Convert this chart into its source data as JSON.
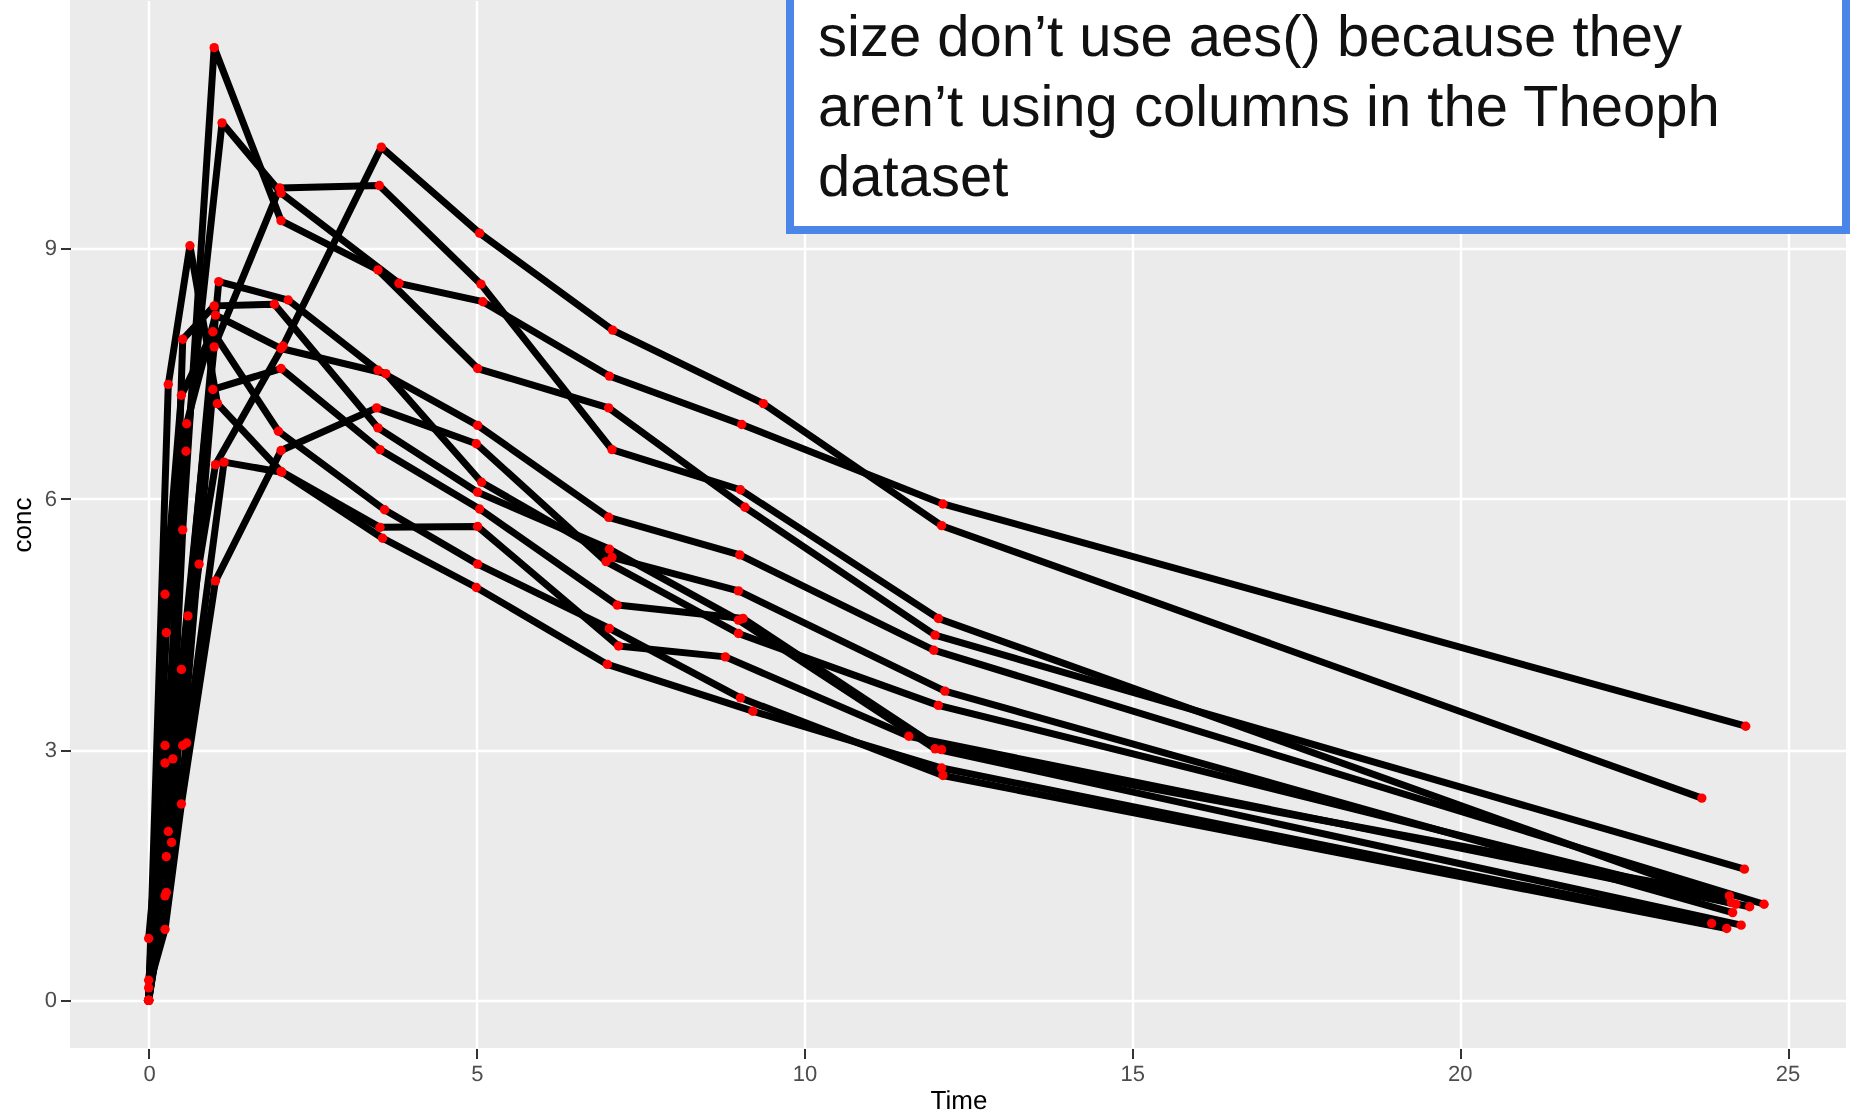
{
  "chart_data": {
    "type": "line",
    "xlabel": "Time",
    "ylabel": "conc",
    "annotations": [
      "size don’t use aes() because they aren’t using columns in the Theoph dataset"
    ],
    "xlim": [
      -1.2,
      25.9
    ],
    "xticks": [
      0,
      5,
      10,
      15,
      20,
      25
    ],
    "ylim": [
      -0.57,
      11.97
    ],
    "yticks": [
      0,
      3,
      6,
      9
    ],
    "grid": true,
    "legend": false,
    "marker": "circle",
    "line_style": "solid",
    "series": [
      {
        "color": "#000000",
        "x": [
          0,
          0.25,
          0.57,
          1.12,
          2.02,
          3.82,
          5.1,
          7.03,
          9.05,
          12.12,
          24.37
        ],
        "values": [
          0.74,
          2.84,
          6.57,
          10.5,
          9.66,
          8.58,
          8.36,
          7.47,
          6.89,
          5.94,
          3.28
        ]
      },
      {
        "color": "#000000",
        "x": [
          0,
          0.27,
          0.52,
          1.0,
          1.92,
          3.5,
          5.02,
          7.03,
          9.0,
          12.0,
          24.3
        ],
        "values": [
          0.0,
          1.72,
          7.91,
          8.31,
          8.33,
          6.85,
          6.08,
          5.4,
          4.55,
          3.01,
          0.9
        ]
      },
      {
        "color": "#000000",
        "x": [
          0,
          0.27,
          0.58,
          1.02,
          2.02,
          3.62,
          5.08,
          7.07,
          9.0,
          12.15,
          24.17
        ],
        "values": [
          0.0,
          4.4,
          6.9,
          8.2,
          7.8,
          7.5,
          6.2,
          5.3,
          4.9,
          3.7,
          1.05
        ]
      },
      {
        "color": "#000000",
        "x": [
          0,
          0.35,
          0.6,
          1.07,
          2.13,
          3.5,
          5.02,
          7.02,
          9.02,
          11.98,
          24.65
        ],
        "values": [
          0.0,
          1.89,
          4.6,
          8.6,
          8.38,
          7.54,
          6.88,
          5.78,
          5.33,
          4.19,
          1.15
        ]
      },
      {
        "color": "#000000",
        "x": [
          0,
          0.3,
          0.52,
          1.0,
          2.02,
          3.5,
          5.02,
          7.02,
          9.1,
          12.0,
          24.35
        ],
        "values": [
          0.0,
          2.02,
          5.63,
          11.4,
          9.33,
          8.74,
          7.56,
          7.09,
          5.9,
          4.37,
          1.57
        ]
      },
      {
        "color": "#000000",
        "x": [
          0,
          0.27,
          0.58,
          1.15,
          2.03,
          3.57,
          5.0,
          7.0,
          9.22,
          12.1,
          23.85
        ],
        "values": [
          0.0,
          1.29,
          3.08,
          6.44,
          6.32,
          5.53,
          4.94,
          4.02,
          3.46,
          2.78,
          0.92
        ]
      },
      {
        "color": "#000000",
        "x": [
          0,
          0.25,
          0.5,
          1.02,
          2.02,
          3.48,
          5.0,
          6.98,
          9.0,
          12.05,
          24.22
        ],
        "values": [
          0.15,
          0.85,
          2.35,
          5.02,
          6.58,
          7.09,
          6.66,
          5.25,
          4.39,
          3.53,
          1.15
        ]
      },
      {
        "color": "#000000",
        "x": [
          0,
          0.25,
          0.52,
          0.98,
          2.02,
          3.53,
          5.05,
          7.15,
          9.07,
          12.1,
          24.12
        ],
        "values": [
          0.0,
          3.05,
          3.05,
          7.31,
          7.56,
          6.59,
          5.88,
          4.73,
          4.57,
          3.0,
          1.25
        ]
      },
      {
        "color": "#000000",
        "x": [
          0,
          0.3,
          0.63,
          1.05,
          2.02,
          3.53,
          5.02,
          7.17,
          8.8,
          11.6,
          24.43
        ],
        "values": [
          0.0,
          7.37,
          9.03,
          7.14,
          6.33,
          5.66,
          5.67,
          4.24,
          4.11,
          3.16,
          1.12
        ]
      },
      {
        "color": "#000000",
        "x": [
          0,
          0.37,
          0.77,
          1.02,
          2.05,
          3.55,
          5.05,
          7.08,
          9.38,
          12.1,
          23.7
        ],
        "values": [
          0.24,
          2.89,
          5.22,
          6.41,
          7.83,
          10.21,
          9.18,
          8.02,
          7.14,
          5.68,
          2.42
        ]
      },
      {
        "color": "#000000",
        "x": [
          0,
          0.25,
          0.5,
          0.98,
          1.98,
          3.6,
          5.02,
          7.03,
          9.03,
          12.12,
          24.08
        ],
        "values": [
          0.0,
          4.86,
          7.24,
          8.0,
          6.81,
          5.87,
          5.22,
          4.45,
          3.62,
          2.69,
          0.86
        ]
      },
      {
        "color": "#000000",
        "x": [
          0,
          0.25,
          0.5,
          1.0,
          2.0,
          3.52,
          5.07,
          7.07,
          9.03,
          12.05,
          24.15
        ],
        "values": [
          0.0,
          1.25,
          3.96,
          7.82,
          9.72,
          9.75,
          8.57,
          6.59,
          6.11,
          4.57,
          1.17
        ]
      }
    ]
  }
}
